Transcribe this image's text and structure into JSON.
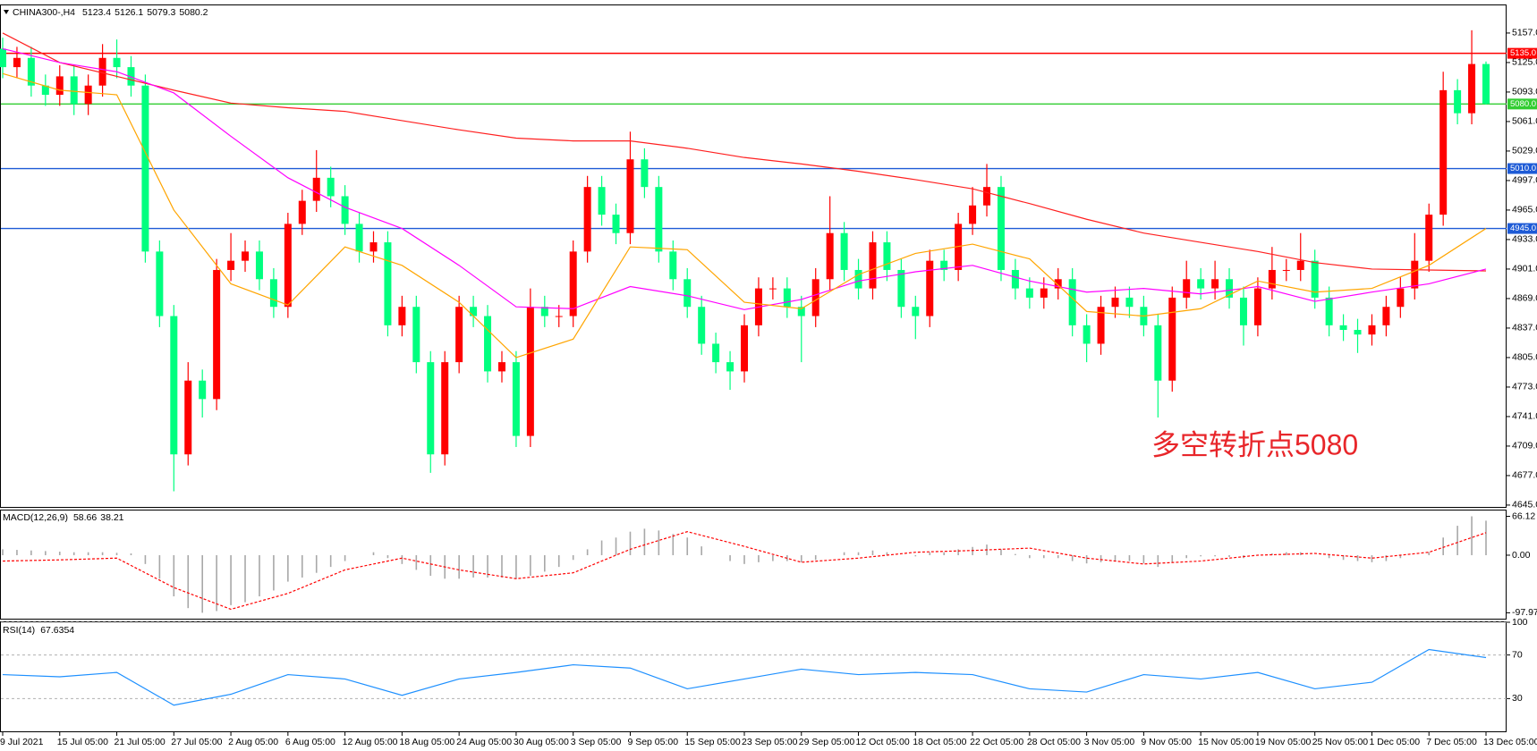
{
  "chart_data": [
    {
      "type": "candlestick",
      "title": "CHINA300-,H4",
      "annotation": "多空转折点5080",
      "annotation_color": "#e8262a",
      "up_color": "#ff0000",
      "down_color": "#00ff7f",
      "open": [
        5140,
        5120,
        5130,
        5100,
        5090,
        5110,
        5080,
        5100,
        5130,
        5120,
        5100,
        4920,
        4850,
        4700,
        4780,
        4760,
        4900,
        4910,
        4920,
        4890,
        4860,
        4950,
        4975,
        5000,
        4980,
        4950,
        4920,
        4930,
        4840,
        4860,
        4800,
        4700,
        4800,
        4860,
        4850,
        4790,
        4800,
        4720,
        4860,
        4850,
        4850,
        4920,
        4990,
        4960,
        4940,
        5020,
        4990,
        4920,
        4890,
        4860,
        4820,
        4800,
        4790,
        4840,
        4880,
        4880,
        4860,
        4850,
        4890,
        4940,
        4900,
        4880,
        4930,
        4900,
        4860,
        4850,
        4910,
        4900,
        4950,
        4970,
        4990,
        4900,
        4880,
        4870,
        4880,
        4890,
        4840,
        4820,
        4860,
        4870,
        4860,
        4840,
        4780,
        4870,
        4890,
        4880,
        4890,
        4870,
        4840,
        4880,
        4900,
        4900,
        4910,
        4870,
        4840,
        4835,
        4830,
        4840,
        4860,
        4880,
        4910,
        4960,
        5095,
        5070,
        5123.4
      ],
      "high": [
        5152,
        5142,
        5142,
        5112,
        5122,
        5122,
        5112,
        5145,
        5150,
        5132,
        5112,
        4932,
        4862,
        4800,
        4792,
        4912,
        4940,
        4932,
        4932,
        4902,
        4962,
        4987,
        5030,
        5012,
        4992,
        4962,
        4942,
        4942,
        4872,
        4872,
        4812,
        4812,
        4872,
        4872,
        4862,
        4812,
        4812,
        4880,
        4872,
        4862,
        4932,
        5002,
        5002,
        4972,
        5050,
        5032,
        5002,
        4932,
        4902,
        4872,
        4832,
        4812,
        4852,
        4892,
        4892,
        4892,
        4872,
        4902,
        4980,
        4952,
        4912,
        4942,
        4942,
        4912,
        4872,
        4922,
        4922,
        4962,
        4990,
        5015,
        5002,
        4912,
        4892,
        4892,
        4902,
        4902,
        4852,
        4872,
        4882,
        4882,
        4872,
        4852,
        4882,
        4910,
        4902,
        4910,
        4902,
        4882,
        4892,
        4925,
        4912,
        4940,
        4922,
        4882,
        4852,
        4847,
        4852,
        4872,
        4892,
        4940,
        4972,
        5115,
        5107,
        5160,
        5126.1
      ],
      "low": [
        5108,
        5108,
        5088,
        5078,
        5078,
        5068,
        5068,
        5088,
        5108,
        5088,
        4908,
        4838,
        4660,
        4688,
        4740,
        4748,
        4888,
        4898,
        4878,
        4848,
        4848,
        4938,
        4963,
        4968,
        4938,
        4908,
        4908,
        4828,
        4828,
        4788,
        4680,
        4688,
        4788,
        4838,
        4778,
        4778,
        4708,
        4708,
        4838,
        4838,
        4838,
        4908,
        4948,
        4928,
        4928,
        4978,
        4908,
        4878,
        4848,
        4808,
        4788,
        4770,
        4778,
        4828,
        4868,
        4848,
        4800,
        4838,
        4878,
        4888,
        4868,
        4868,
        4888,
        4848,
        4825,
        4838,
        4888,
        4888,
        4938,
        4958,
        4888,
        4868,
        4858,
        4858,
        4868,
        4828,
        4800,
        4808,
        4848,
        4848,
        4828,
        4740,
        4768,
        4858,
        4868,
        4868,
        4858,
        4818,
        4828,
        4868,
        4888,
        4888,
        4858,
        4828,
        4823,
        4810,
        4818,
        4828,
        4848,
        4868,
        4898,
        4948,
        5058,
        5058,
        5079.3
      ],
      "close": [
        5120,
        5130,
        5100,
        5090,
        5110,
        5080,
        5100,
        5130,
        5120,
        5100,
        4920,
        4850,
        4700,
        4780,
        4760,
        4900,
        4910,
        4920,
        4890,
        4860,
        4950,
        4975,
        5000,
        4980,
        4950,
        4920,
        4930,
        4840,
        4860,
        4800,
        4700,
        4800,
        4860,
        4850,
        4790,
        4800,
        4720,
        4860,
        4850,
        4850,
        4920,
        4990,
        4960,
        4940,
        5020,
        4990,
        4920,
        4890,
        4860,
        4820,
        4800,
        4790,
        4840,
        4880,
        4880,
        4860,
        4850,
        4890,
        4940,
        4900,
        4880,
        4930,
        4900,
        4860,
        4850,
        4910,
        4900,
        4950,
        4970,
        4990,
        4900,
        4880,
        4870,
        4880,
        4890,
        4840,
        4820,
        4860,
        4870,
        4860,
        4840,
        4780,
        4870,
        4890,
        4880,
        4890,
        4870,
        4840,
        4880,
        4900,
        4900,
        4910,
        4870,
        4840,
        4835,
        4830,
        4840,
        4860,
        4880,
        4910,
        4960,
        5095,
        5070,
        5123.4,
        5080.2
      ],
      "series": [
        {
          "color": "#ff2020",
          "values": [
            5157,
            5125,
            5110,
            5095,
            5081,
            5076,
            5072,
            5062,
            5052,
            5043,
            5040,
            5040,
            5032,
            5022,
            5015,
            5007,
            4998,
            4988,
            4972,
            4955,
            4940,
            4930,
            4920,
            4908,
            4901,
            4900,
            4899
          ]
        },
        {
          "color": "#ff00ff",
          "values": [
            5140,
            5125,
            5115,
            5092,
            5045,
            5000,
            4968,
            4945,
            4905,
            4860,
            4858,
            4882,
            4872,
            4857,
            4868,
            4888,
            4898,
            4905,
            4888,
            4876,
            4880,
            4874,
            4882,
            4866,
            4876,
            4885,
            4901
          ]
        },
        {
          "color": "#ffa500",
          "values": [
            5113,
            5095,
            5090,
            4965,
            4885,
            4862,
            4925,
            4905,
            4865,
            4805,
            4825,
            4925,
            4922,
            4865,
            4858,
            4895,
            4918,
            4928,
            4912,
            4855,
            4850,
            4858,
            4888,
            4876,
            4880,
            4905,
            4945
          ]
        }
      ],
      "levels": [
        {
          "value": 5135,
          "label": "5135.0",
          "color": "#ff0000"
        },
        {
          "value": 5080,
          "label": "5080.0",
          "color": "#32cd32"
        },
        {
          "value": 5010,
          "label": "5010.0",
          "color": "#1e5bd6"
        },
        {
          "value": 4945,
          "label": "4945.0",
          "color": "#1e5bd6"
        }
      ],
      "ylim": [
        4643,
        5187
      ],
      "yticks": [
        {
          "value": 5157,
          "label": "5157.0"
        },
        {
          "value": 5125,
          "label": "5125.0"
        },
        {
          "value": 5093,
          "label": "5093.0"
        },
        {
          "value": 5061,
          "label": "5061.0"
        },
        {
          "value": 5029,
          "label": "5029.0"
        },
        {
          "value": 4997,
          "label": "4997.0"
        },
        {
          "value": 4965,
          "label": "4965.0"
        },
        {
          "value": 4933,
          "label": "4933.0"
        },
        {
          "value": 4901,
          "label": "4901.0"
        },
        {
          "value": 4869,
          "label": "4869.0"
        },
        {
          "value": 4837,
          "label": "4837.0"
        },
        {
          "value": 4805,
          "label": "4805.0"
        },
        {
          "value": 4773,
          "label": "4773.0"
        },
        {
          "value": 4741,
          "label": "4741.0"
        },
        {
          "value": 4709,
          "label": "4709.0"
        },
        {
          "value": 4677,
          "label": "4677.0"
        },
        {
          "value": 4645,
          "label": "4645.0"
        }
      ],
      "xticks": [
        {
          "value": 0,
          "label": "9 Jul 2021"
        },
        {
          "value": 4,
          "label": "15 Jul 05:00"
        },
        {
          "value": 8,
          "label": "21 Jul 05:00"
        },
        {
          "value": 12,
          "label": "27 Jul 05:00"
        },
        {
          "value": 16,
          "label": "2 Aug 05:00"
        },
        {
          "value": 20,
          "label": "6 Aug 05:00"
        },
        {
          "value": 24,
          "label": "12 Aug 05:00"
        },
        {
          "value": 28,
          "label": "18 Aug 05:00"
        },
        {
          "value": 32,
          "label": "24 Aug 05:00"
        },
        {
          "value": 36,
          "label": "30 Aug 05:00"
        },
        {
          "value": 40,
          "label": "3 Sep 05:00"
        },
        {
          "value": 44,
          "label": "9 Sep 05:00"
        },
        {
          "value": 48,
          "label": "15 Sep 05:00"
        },
        {
          "value": 52,
          "label": "23 Sep 05:00"
        },
        {
          "value": 56,
          "label": "29 Sep 05:00"
        },
        {
          "value": 60,
          "label": "12 Oct 05:00"
        },
        {
          "value": 64,
          "label": "18 Oct 05:00"
        },
        {
          "value": 68,
          "label": "22 Oct 05:00"
        },
        {
          "value": 72,
          "label": "28 Oct 05:00"
        },
        {
          "value": 76,
          "label": "3 Nov 05:00"
        },
        {
          "value": 80,
          "label": "9 Nov 05:00"
        },
        {
          "value": 84,
          "label": "15 Nov 05:00"
        },
        {
          "value": 88,
          "label": "19 Nov 05:00"
        },
        {
          "value": 92,
          "label": "25 Nov 05:00"
        },
        {
          "value": 96,
          "label": "1 Dec 05:00"
        },
        {
          "value": 100,
          "label": "7 Dec 05:00"
        },
        {
          "value": 104,
          "label": "13 Dec 05:00"
        }
      ]
    },
    {
      "type": "bar",
      "title": "MACD(12,26,9)",
      "color": "#a8a8a8",
      "values": [
        10,
        9,
        8,
        7,
        6,
        5,
        5,
        5,
        4,
        3,
        -15,
        -40,
        -70,
        -90,
        -97.97,
        -95,
        -85,
        -80,
        -70,
        -60,
        -45,
        -38,
        -30,
        -20,
        -10,
        0,
        5,
        -5,
        -15,
        -25,
        -35,
        -40,
        -40,
        -38,
        -38,
        -38,
        -40,
        -35,
        -28,
        -20,
        -8,
        10,
        25,
        30,
        40,
        45,
        42,
        36,
        30,
        15,
        0,
        -10,
        -15,
        -12,
        -10,
        -10,
        -12,
        -8,
        0,
        5,
        5,
        8,
        5,
        0,
        -2,
        5,
        5,
        10,
        14,
        18,
        10,
        2,
        -5,
        -5,
        -5,
        -10,
        -14,
        -12,
        -10,
        -10,
        -14,
        -20,
        -12,
        -5,
        -2,
        -2,
        -3,
        -5,
        0,
        3,
        5,
        5,
        0,
        -5,
        -8,
        -10,
        -12,
        -10,
        -5,
        0,
        5,
        30,
        50,
        66.12,
        58.66
      ],
      "series": [
        {
          "color": "#ff0000",
          "dashed": true,
          "values": [
            -10,
            -8,
            -5,
            -55,
            -92,
            -65,
            -25,
            -5,
            -25,
            -40,
            -30,
            10,
            40,
            15,
            -12,
            -5,
            5,
            8,
            12,
            -5,
            -15,
            -10,
            0,
            3,
            -5,
            5,
            38.21
          ]
        }
      ],
      "ylim": [
        -108,
        76
      ],
      "yticks": [
        66.12,
        {
          "value": 0,
          "label": "0.00"
        },
        -97.97
      ]
    },
    {
      "type": "line",
      "title": "RSI(14)",
      "dashed_grid": true,
      "series": [
        {
          "color": "#1e90ff",
          "values": [
            52,
            50,
            54,
            24,
            34,
            52,
            48,
            33,
            48,
            54,
            61,
            58,
            39,
            48,
            57,
            52,
            54,
            52,
            39,
            36,
            52,
            48,
            54,
            39,
            45,
            75,
            67.6354
          ]
        }
      ],
      "ylim": [
        0,
        100
      ],
      "yticks": [
        100,
        70,
        30
      ]
    }
  ]
}
